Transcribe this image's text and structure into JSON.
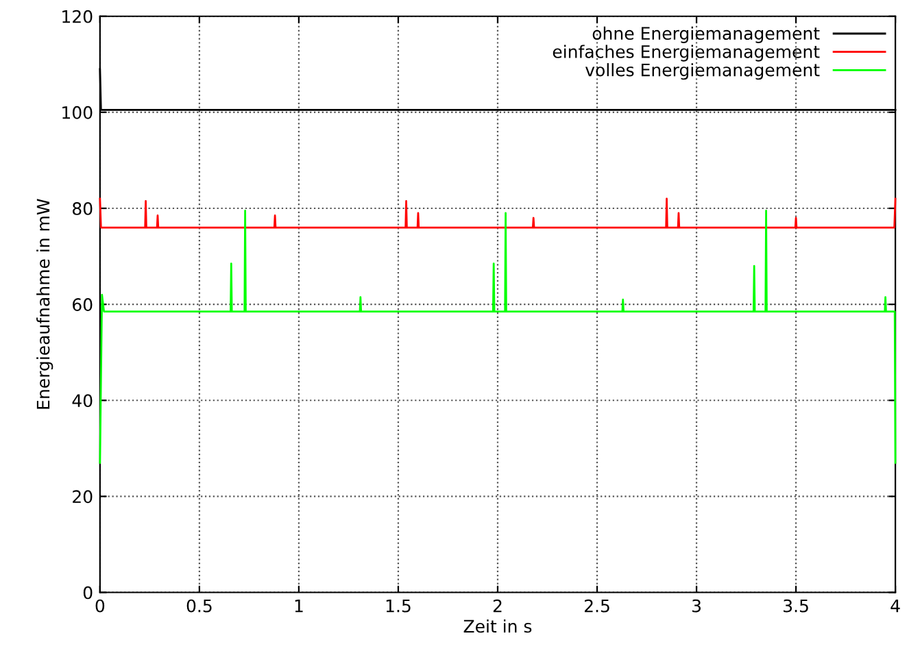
{
  "chart_data": {
    "type": "line",
    "xlabel": "Zeit in s",
    "ylabel": "Energieaufnahme in mW",
    "xlim": [
      0,
      4
    ],
    "ylim": [
      0,
      120
    ],
    "xticks": [
      0,
      0.5,
      1,
      1.5,
      2,
      2.5,
      3,
      3.5,
      4
    ],
    "yticks": [
      0,
      20,
      40,
      60,
      80,
      100,
      120
    ],
    "grid": true,
    "legend": "top right",
    "line_style": "solid",
    "marker": "none",
    "series": [
      {
        "name": "ohne Energiemanagement",
        "color": "#000000",
        "x": [
          0,
          0.005,
          0.5,
          1,
          1.5,
          2,
          2.5,
          3,
          3.5,
          4
        ],
        "values": [
          109,
          100.5,
          100.5,
          100.5,
          100.5,
          100.5,
          100.5,
          100.5,
          100.5,
          100.5
        ]
      },
      {
        "name": "einfaches Energiemanagement",
        "color": "#ff0000",
        "x": [
          0,
          0.005,
          0.227,
          0.23,
          0.233,
          0.287,
          0.29,
          0.293,
          0.877,
          0.88,
          0.883,
          1.537,
          1.54,
          1.543,
          1.597,
          1.6,
          1.603,
          2.177,
          2.18,
          2.183,
          2.847,
          2.85,
          2.853,
          2.907,
          2.91,
          2.913,
          3.497,
          3.5,
          3.503,
          3.995,
          4
        ],
        "values": [
          82,
          76,
          76,
          81.5,
          76,
          76,
          78.5,
          76,
          76,
          78.5,
          76,
          76,
          81.5,
          76,
          76,
          79,
          76,
          76,
          78,
          76,
          76,
          82,
          76,
          76,
          79,
          76,
          76,
          78,
          76,
          76,
          82
        ]
      },
      {
        "name": "volles Energiemanagement",
        "color": "#00ff00",
        "x": [
          0,
          0.01,
          0.02,
          0.657,
          0.66,
          0.663,
          0.727,
          0.73,
          0.733,
          1.307,
          1.31,
          1.313,
          1.977,
          1.98,
          1.983,
          2.037,
          2.04,
          2.043,
          2.627,
          2.63,
          2.633,
          3.287,
          3.29,
          3.293,
          3.347,
          3.35,
          3.353,
          3.947,
          3.95,
          3.953,
          3.997,
          4
        ],
        "values": [
          27,
          62,
          58.5,
          58.5,
          68.5,
          58.5,
          58.5,
          79.5,
          58.5,
          58.5,
          61.5,
          58.5,
          58.5,
          68.5,
          58.5,
          58.5,
          79,
          58.5,
          58.5,
          61,
          58.5,
          58.5,
          68,
          58.5,
          58.5,
          79.5,
          58.5,
          58.5,
          61.5,
          58.5,
          58.5,
          27
        ]
      }
    ]
  }
}
